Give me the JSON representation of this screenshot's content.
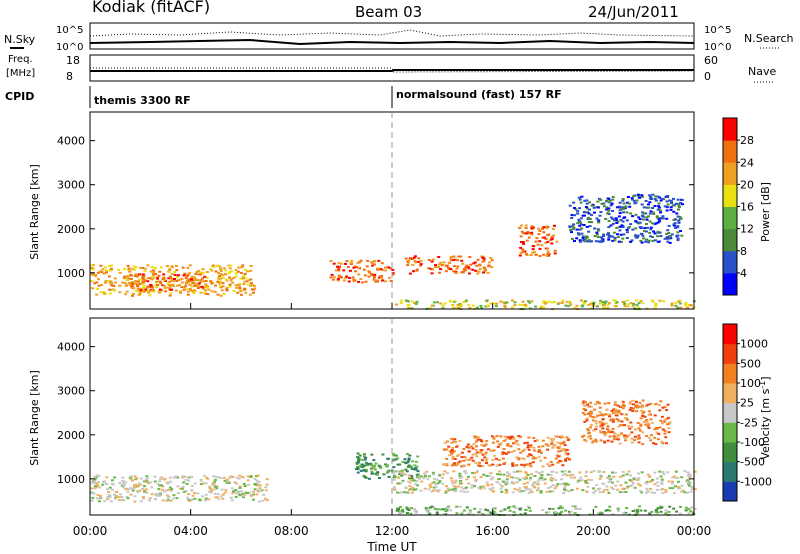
{
  "header": {
    "station": "Kodiak (fitACF)",
    "beam": "Beam 03",
    "date": "24/Jun/2011"
  },
  "summary": {
    "noise_left_label": "N.Sky",
    "noise_right_label": "N.Search",
    "noise_left_ticks": [
      "10^5",
      "10^0"
    ],
    "noise_right_ticks": [
      "10^5",
      "10^0"
    ],
    "freq_label_line1": "Freq.",
    "freq_label_line2": "[MHz]",
    "freq_ticks": [
      "18",
      "8"
    ],
    "nave_label": "Nave",
    "nave_ticks": [
      "60",
      "0"
    ],
    "cpid_label": "CPID",
    "cpid_segments": [
      {
        "start_hour": 0,
        "end_hour": 12,
        "label": "themis 3300 RF"
      },
      {
        "start_hour": 12,
        "end_hour": 24,
        "label": "normalsound (fast) 157 RF"
      }
    ]
  },
  "chart_data": [
    {
      "type": "heatmap",
      "parameter": "Power",
      "ylabel": "Slant Range [km]",
      "xlim": [
        0,
        24
      ],
      "ylim": [
        180,
        4650
      ],
      "yticks": [
        1000,
        2000,
        3000,
        4000
      ],
      "xtick_labels": [
        "00:00",
        "04:00",
        "08:00",
        "12:00",
        "16:00",
        "20:00",
        "00:00"
      ],
      "colorbar": {
        "label": "Power [dB]",
        "ticks": [
          "4",
          "8",
          "12",
          "16",
          "20",
          "24",
          "28"
        ],
        "colors": [
          "#0000ff",
          "#2850c8",
          "#4a8a3a",
          "#5ab040",
          "#e8e010",
          "#f0a020",
          "#f07010",
          "#ff0000"
        ]
      },
      "features": [
        {
          "start_hour": 0.0,
          "end_hour": 6.5,
          "range_km": [
            500,
            1200
          ],
          "level": 5
        },
        {
          "start_hour": 1.5,
          "end_hour": 4.5,
          "range_km": [
            600,
            1000
          ],
          "level": 6
        },
        {
          "start_hour": 9.5,
          "end_hour": 12.0,
          "range_km": [
            800,
            1300
          ],
          "level": 6
        },
        {
          "start_hour": 12.5,
          "end_hour": 16.0,
          "range_km": [
            1000,
            1400
          ],
          "level": 6
        },
        {
          "start_hour": 17.0,
          "end_hour": 18.5,
          "range_km": [
            1400,
            2100
          ],
          "level": 6
        },
        {
          "start_hour": 19.0,
          "end_hour": 23.5,
          "range_km": [
            1700,
            2800
          ],
          "level": 1
        },
        {
          "start_hour": 12.0,
          "end_hour": 24.0,
          "range_km": [
            200,
            400
          ],
          "level": 4
        }
      ]
    },
    {
      "type": "heatmap",
      "parameter": "Velocity",
      "ylabel": "Slant Range [km]",
      "xlabel": "Time UT",
      "xlim": [
        0,
        24
      ],
      "ylim": [
        180,
        4650
      ],
      "yticks": [
        1000,
        2000,
        3000,
        4000
      ],
      "xtick_labels": [
        "00:00",
        "04:00",
        "08:00",
        "12:00",
        "16:00",
        "20:00",
        "00:00"
      ],
      "colorbar": {
        "label": "Velocity [m s",
        "label_superscript": "-1",
        "label_close": "]",
        "ticks": [
          "1000",
          "500",
          "100",
          "25",
          "-25",
          "-100",
          "-500",
          "-1000"
        ],
        "colors": [
          "#1a3ab0",
          "#2a7a70",
          "#3e8e3e",
          "#6ab848",
          "#c8c8c8",
          "#f0b060",
          "#f08020",
          "#f04010",
          "#ff0000"
        ]
      },
      "features": [
        {
          "start_hour": 0.0,
          "end_hour": 7.0,
          "range_km": [
            500,
            1100
          ],
          "level": 4
        },
        {
          "start_hour": 10.5,
          "end_hour": 13.0,
          "range_km": [
            1000,
            1600
          ],
          "level": 2
        },
        {
          "start_hour": 14.0,
          "end_hour": 19.0,
          "range_km": [
            1300,
            2000
          ],
          "level": 6
        },
        {
          "start_hour": 19.5,
          "end_hour": 23.0,
          "range_km": [
            1800,
            2800
          ],
          "level": 6
        },
        {
          "start_hour": 12.0,
          "end_hour": 24.0,
          "range_km": [
            700,
            1200
          ],
          "level": 4
        },
        {
          "start_hour": 12.0,
          "end_hour": 24.0,
          "range_km": [
            200,
            400
          ],
          "level": 3
        }
      ]
    }
  ]
}
